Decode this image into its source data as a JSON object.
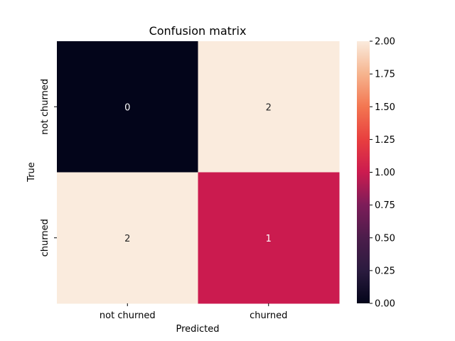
{
  "chart_data": {
    "type": "heatmap",
    "title": "Confusion matrix",
    "xlabel": "Predicted",
    "ylabel": "True",
    "x_categories": [
      "not churned",
      "churned"
    ],
    "y_categories": [
      "not churned",
      "churned"
    ],
    "values": [
      [
        0,
        2
      ],
      [
        2,
        1
      ]
    ],
    "value_labels": [
      [
        "0",
        "2"
      ],
      [
        "2",
        "1"
      ]
    ],
    "vmin": 0,
    "vmax": 2,
    "colormap": "rocket",
    "colorbar": {
      "ticks": [
        0,
        0.25,
        0.5,
        0.75,
        1,
        1.25,
        1.5,
        1.75,
        2
      ],
      "tick_labels": [
        "0.00",
        "0.25",
        "0.50",
        "0.75",
        "1.00",
        "1.25",
        "1.50",
        "1.75",
        "2.00"
      ],
      "placement": "right"
    }
  }
}
